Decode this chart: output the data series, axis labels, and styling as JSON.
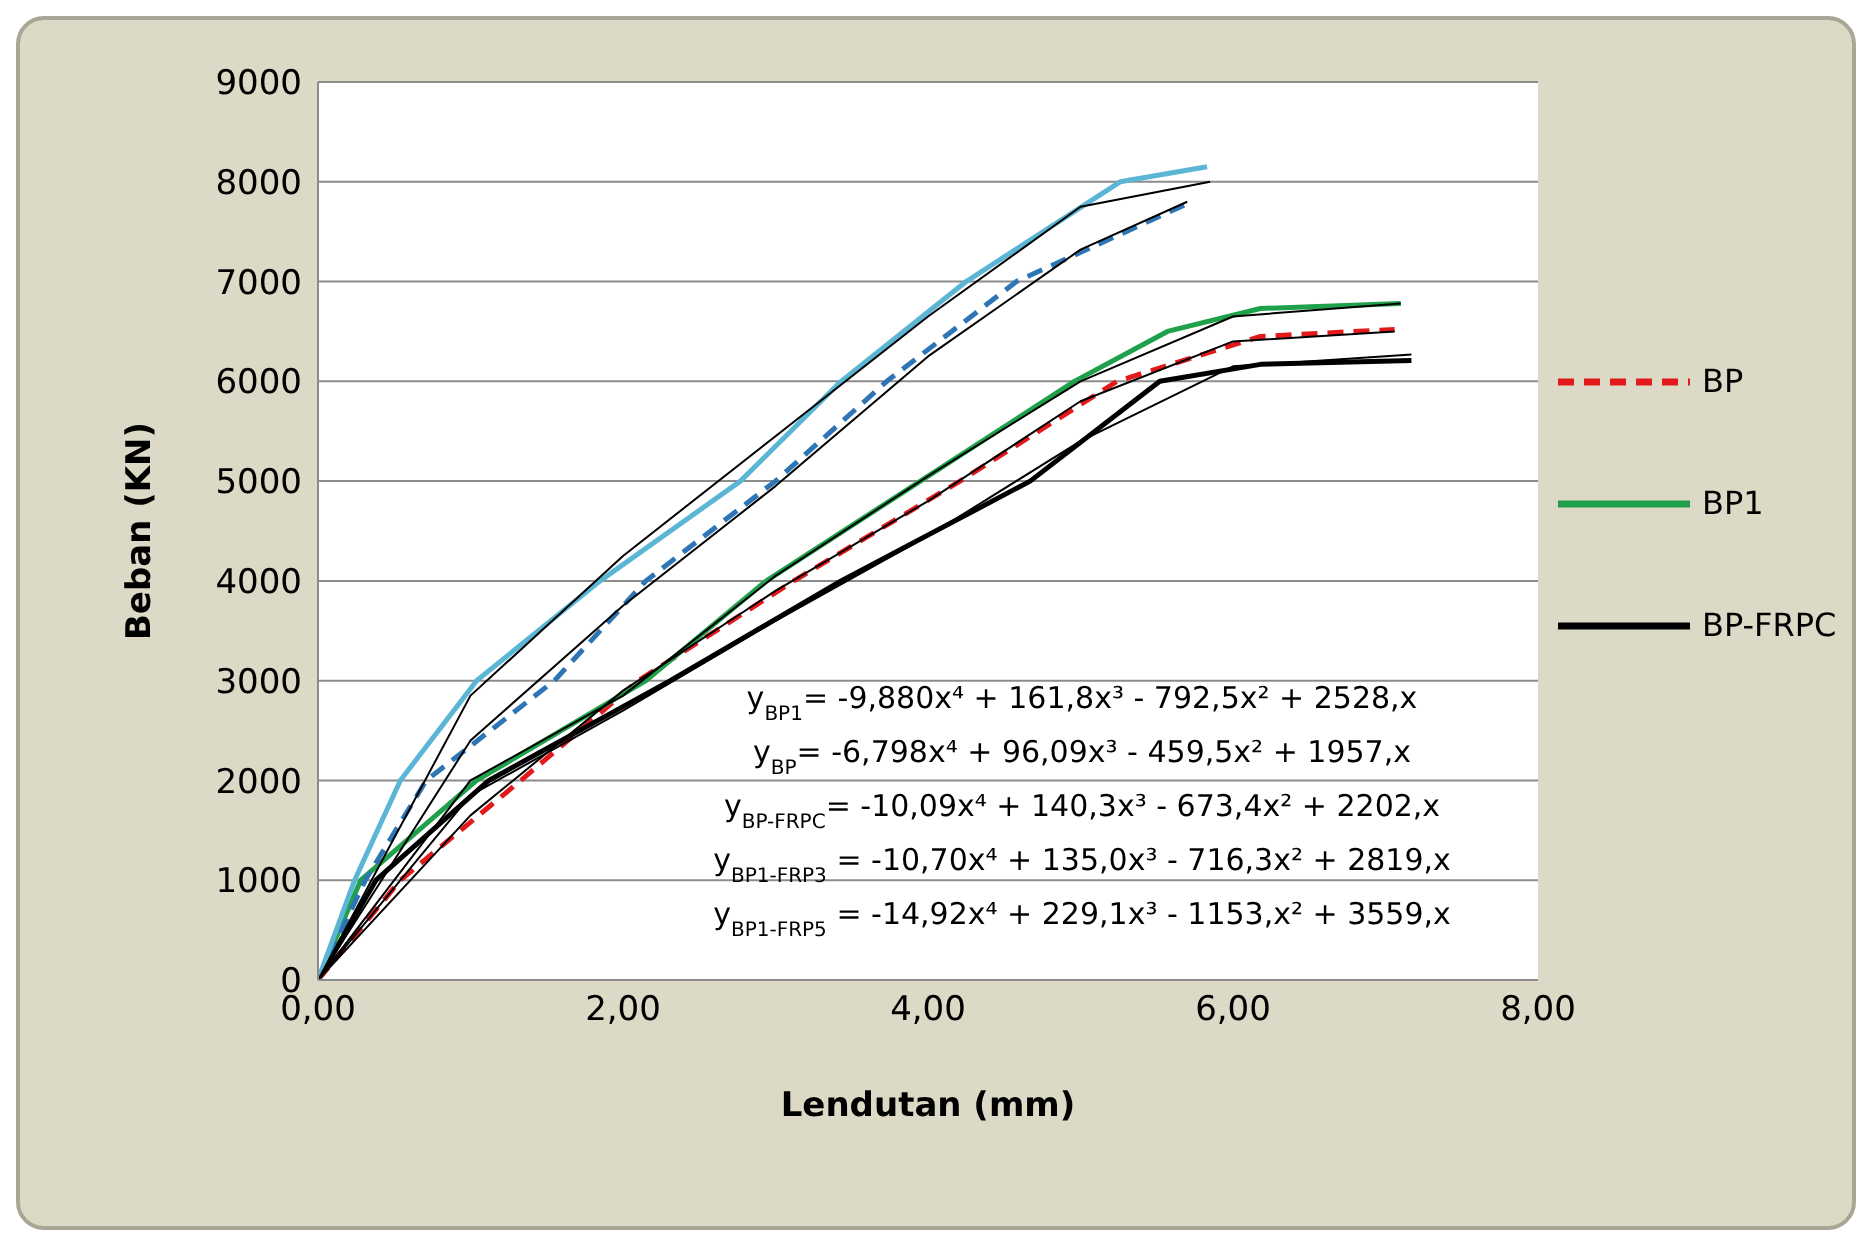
{
  "chart_data": {
    "type": "line",
    "xlabel": "Lendutan (mm)",
    "ylabel": "Beban (KN)",
    "xlim": [
      0,
      8
    ],
    "xticks": [
      {
        "value": 0,
        "label": "0,00"
      },
      {
        "value": 2,
        "label": "2,00"
      },
      {
        "value": 4,
        "label": "4,00"
      },
      {
        "value": 6,
        "label": "6,00"
      },
      {
        "value": 8,
        "label": "8,00"
      }
    ],
    "ylim": [
      0,
      9000
    ],
    "yticks": [
      0,
      1000,
      2000,
      3000,
      4000,
      5000,
      6000,
      7000,
      8000,
      9000
    ],
    "grid": "y",
    "legend": "right",
    "marker": "none",
    "series": [
      {
        "name": "BP",
        "color": "#e31a1c",
        "line_style": "dashed",
        "x": [
          0,
          0.54,
          1.33,
          2.1,
          3.12,
          4.21,
          5.24,
          6.18,
          7.06
        ],
        "values": [
          0,
          1000,
          2000,
          3000,
          4000,
          5000,
          6000,
          6450,
          6520
        ]
      },
      {
        "name": "BP1",
        "color": "#1fa04a",
        "line_style": "solid",
        "x": [
          0,
          0.28,
          1.04,
          2.15,
          2.94,
          3.95,
          4.96,
          5.57,
          6.18,
          7.1
        ],
        "values": [
          0,
          1000,
          2000,
          3000,
          4000,
          5000,
          6000,
          6500,
          6730,
          6780
        ]
      },
      {
        "name": "BP-FRPC",
        "color": "#000000",
        "line_style": "solid",
        "x": [
          0,
          0.38,
          1.12,
          2.31,
          3.43,
          4.67,
          5.52,
          6.18,
          7.17
        ],
        "values": [
          0,
          1000,
          2000,
          3000,
          4000,
          5000,
          6000,
          6170,
          6210
        ]
      },
      {
        "color": "#2e75b6",
        "line_style": "dashed",
        "x": [
          0,
          0.31,
          0.71,
          1.55,
          2.15,
          3.0,
          3.73,
          4.58,
          5.7
        ],
        "values": [
          0,
          1000,
          2000,
          3000,
          4000,
          5000,
          6000,
          7000,
          7780
        ]
      },
      {
        "color": "#5bb5d5",
        "line_style": "solid",
        "x": [
          0,
          0.24,
          0.54,
          1.04,
          1.85,
          2.77,
          3.43,
          4.25,
          5.26,
          5.83
        ],
        "values": [
          0,
          1000,
          2000,
          3000,
          4000,
          5000,
          6000,
          7000,
          8000,
          8150
        ]
      },
      {
        "color": "#000000",
        "line_style": "solid",
        "x": [
          0,
          1,
          2,
          3,
          4,
          5,
          6,
          7.06
        ],
        "values": [
          0,
          1650,
          2900,
          3900,
          4800,
          5800,
          6400,
          6500
        ]
      },
      {
        "color": "#000000",
        "line_style": "solid",
        "x": [
          0,
          1,
          2,
          3,
          4,
          5,
          6,
          7.1
        ],
        "values": [
          0,
          2000,
          2850,
          4050,
          5050,
          6000,
          6650,
          6780
        ]
      },
      {
        "color": "#000000",
        "line_style": "solid",
        "x": [
          0,
          1,
          2,
          3,
          4,
          5,
          6,
          7.17
        ],
        "values": [
          0,
          1850,
          2700,
          3600,
          4450,
          5400,
          6150,
          6270
        ]
      },
      {
        "color": "#000000",
        "line_style": "solid",
        "x": [
          0,
          1,
          2,
          3,
          4,
          5,
          5.7
        ],
        "values": [
          0,
          2400,
          3750,
          4950,
          6250,
          7320,
          7800
        ]
      },
      {
        "color": "#000000",
        "line_style": "solid",
        "x": [
          0,
          1,
          2,
          3,
          4,
          5,
          5.85
        ],
        "values": [
          0,
          2850,
          4250,
          5450,
          6650,
          7750,
          8000
        ]
      }
    ],
    "annotations": [
      "y$_{BP1}$= -9,880x⁴ + 161,8x³ - 792,5x² + 2528,x",
      "y$_{BP}$= -6,798x⁴ + 96,09x³ - 459,5x² + 1957,x",
      "y$_{BP-FRPC}$= -10,09x⁴ + 140,3x³ - 673,4x² + 2202,x",
      "y$_{BP1-FRP3}$ = -10,70x⁴ + 135,0x³ - 716,3x² + 2819,x",
      "y$_{BP1-FRP5}$ = -14,92x⁴ + 229,1x³ - 1153,x² + 3559,x"
    ]
  }
}
